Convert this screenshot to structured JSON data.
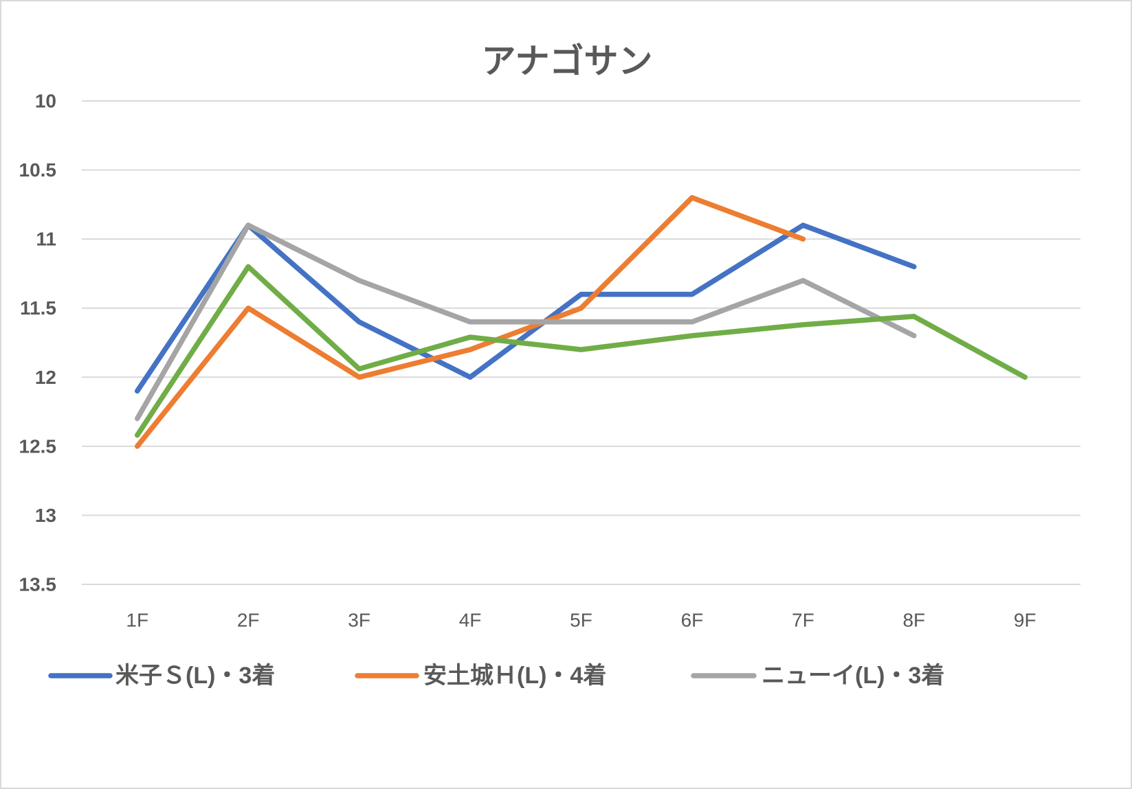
{
  "chart_data": {
    "type": "line",
    "title": "アナゴサン",
    "categories": [
      "1F",
      "2F",
      "3F",
      "4F",
      "5F",
      "6F",
      "7F",
      "8F",
      "9F"
    ],
    "y_ticks": [
      "10",
      "10.5",
      "11",
      "11.5",
      "12",
      "12.5",
      "13",
      "13.5"
    ],
    "ylim": [
      10,
      13.5
    ],
    "y_axis_reversed": true,
    "grid": true,
    "legend_position": "bottom",
    "series": [
      {
        "name": "米子Ｓ(L)・3着",
        "color": "#4472C4",
        "values": [
          12.1,
          10.9,
          11.6,
          12.0,
          11.4,
          11.4,
          10.9,
          11.2,
          null
        ]
      },
      {
        "name": "安土城Ｈ(L)・4着",
        "color": "#ED7D31",
        "values": [
          12.5,
          11.5,
          12.0,
          11.8,
          11.5,
          10.7,
          11.0,
          null,
          null
        ]
      },
      {
        "name": "ニューイ(L)・3着",
        "color": "#A5A5A5",
        "values": [
          12.3,
          10.9,
          11.3,
          11.6,
          11.6,
          11.6,
          11.3,
          11.7,
          null
        ]
      },
      {
        "color": "#70AD47",
        "values": [
          12.42,
          11.2,
          11.94,
          11.71,
          11.8,
          11.7,
          11.62,
          11.56,
          12.0
        ]
      }
    ]
  }
}
